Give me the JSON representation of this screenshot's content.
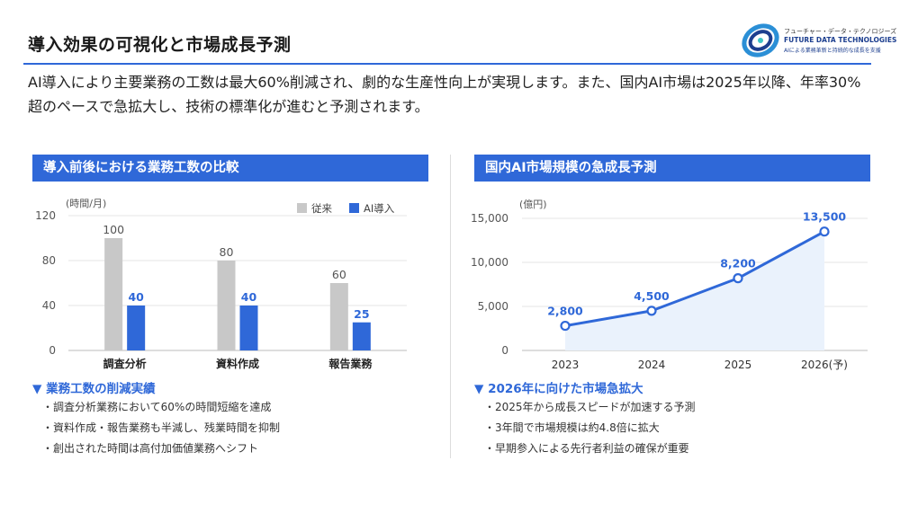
{
  "page": {
    "title": "導入効果の可視化と市場成長予測",
    "intro": "AI導入により主要業務の工数は最大60%削減され、劇的な生産性向上が実現します。また、国内AI市場は2025年以降、年率30%超のペースで急拡大し、技術の標準化が進むと予測されます。"
  },
  "logo": {
    "name_jp": "フューチャー・データ・テクノロジーズ",
    "name_en": "FUTURE DATA TECHNOLOGIES",
    "tagline": "AIによる業務革新と持続的な成長を支援"
  },
  "colors": {
    "accent": "#2f68d8",
    "bar_before": "#c8c8c8",
    "bar_after": "#2f68d8",
    "line": "#2f68d8",
    "area_fill": "#eaf2fc"
  },
  "left_panel": {
    "header": "導入前後における業務工数の比較",
    "note_heading": "▼ 業務工数の削減実績",
    "notes": [
      "調査分析業務において60%の時間短縮を達成",
      "資料作成・報告業務も半減し、残業時間を抑制",
      "創出された時間は高付加価値業務へシフト"
    ]
  },
  "right_panel": {
    "header": "国内AI市場規模の急成長予測",
    "note_heading": "▼ 2026年に向けた市場急拡大",
    "notes": [
      "2025年から成長スピードが加速する予測",
      "3年間で市場規模は約4.8倍に拡大",
      "早期参入による先行者利益の確保が重要"
    ]
  },
  "chart_data": [
    {
      "type": "bar",
      "unit_label": "(時間/月)",
      "categories": [
        "調査分析",
        "資料作成",
        "報告業務"
      ],
      "series": [
        {
          "name": "従来",
          "values": [
            100,
            80,
            60
          ]
        },
        {
          "name": "AI導入",
          "values": [
            40,
            40,
            25
          ]
        }
      ],
      "yticks": [
        "120",
        "80",
        "40",
        "0"
      ],
      "ylim": [
        0,
        120
      ],
      "legend": "top-right",
      "grid": true
    },
    {
      "type": "area",
      "unit_label": "(億円)",
      "categories": [
        "2023",
        "2024",
        "2025",
        "2026(予)"
      ],
      "values": [
        2800,
        4500,
        8200,
        13500
      ],
      "value_labels": [
        "2,800",
        "4,500",
        "8,200",
        "13,500"
      ],
      "yticks": [
        "15,000",
        "10,000",
        "5,000",
        "0"
      ],
      "ylim": [
        0,
        15000
      ],
      "grid": true
    }
  ]
}
